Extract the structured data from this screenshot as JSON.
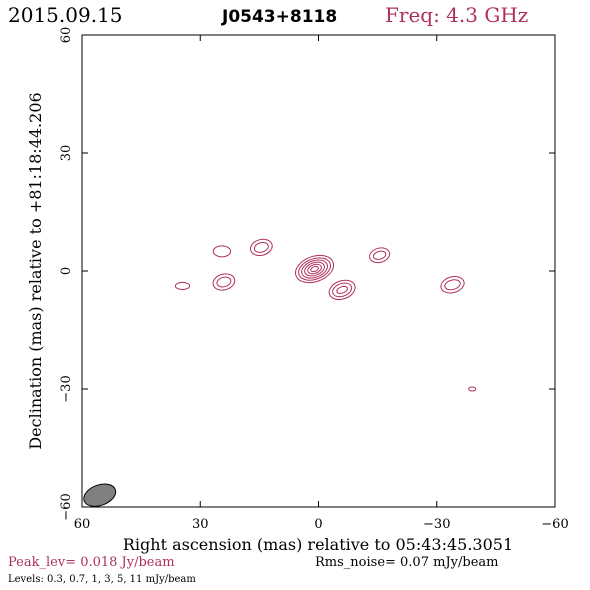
{
  "header": {
    "date": "2015.09.15",
    "source": "J0543+8118",
    "freq": "Freq: 4.3 GHz"
  },
  "footer": {
    "peak": "Peak_lev=  0.018 Jy/beam",
    "rms": "Rms_noise= 0.07 mJy/beam",
    "levels": "Levels: 0.3, 0.7,   1,   3,   5,  11 mJy/beam"
  },
  "colors": {
    "accent": "#b0305a",
    "axis": "#000000",
    "beam": "#808080"
  },
  "chart_data": {
    "type": "contour",
    "xlabel": "Right ascension (mas) relative to 05:43:45.3051",
    "ylabel": "Declination (mas) relative to +81:18:44.206",
    "xlim": [
      60,
      -60
    ],
    "ylim": [
      -60,
      60
    ],
    "x_ticks": [
      60,
      30,
      0,
      -30,
      -60
    ],
    "y_ticks": [
      -60,
      -30,
      0,
      30,
      60
    ],
    "x_tick_labels": [
      "60",
      "30",
      "0",
      "−30",
      "−60"
    ],
    "y_tick_labels": [
      "−60",
      "−30",
      "0",
      "30",
      "60"
    ],
    "beam": {
      "x": 55.5,
      "y": -57,
      "major": 4.2,
      "minor": 2.6,
      "pa_deg": -20
    },
    "components": [
      {
        "x": 1,
        "y": 0.5,
        "angle": -20,
        "rx": [
          5,
          4.2,
          3.4,
          2.6,
          1.8,
          1.0
        ],
        "ry": [
          3.2,
          2.6,
          2.1,
          1.6,
          1.1,
          0.6
        ]
      },
      {
        "x": -6,
        "y": -4.8,
        "angle": -20,
        "rx": [
          3.4,
          2.5,
          1.4
        ],
        "ry": [
          2.3,
          1.6,
          0.8
        ]
      },
      {
        "x": 24,
        "y": -2.8,
        "angle": -15,
        "rx": [
          2.8,
          1.8
        ],
        "ry": [
          2.0,
          1.2
        ]
      },
      {
        "x": 14.5,
        "y": 6,
        "angle": -15,
        "rx": [
          2.8,
          1.8
        ],
        "ry": [
          2.0,
          1.2
        ]
      },
      {
        "x": -15.5,
        "y": 4,
        "angle": -15,
        "rx": [
          2.6,
          1.6
        ],
        "ry": [
          1.8,
          1.0
        ]
      },
      {
        "x": -34,
        "y": -3.5,
        "angle": -15,
        "rx": [
          3.0,
          2.0
        ],
        "ry": [
          2.0,
          1.2
        ]
      },
      {
        "x": 24.5,
        "y": 5,
        "angle": 0,
        "rx": [
          2.2
        ],
        "ry": [
          1.4
        ]
      },
      {
        "x": 34.5,
        "y": -3.8,
        "angle": 0,
        "rx": [
          1.8
        ],
        "ry": [
          0.9
        ]
      },
      {
        "x": -39,
        "y": -30,
        "angle": 0,
        "rx": [
          0.9
        ],
        "ry": [
          0.5
        ]
      }
    ]
  }
}
